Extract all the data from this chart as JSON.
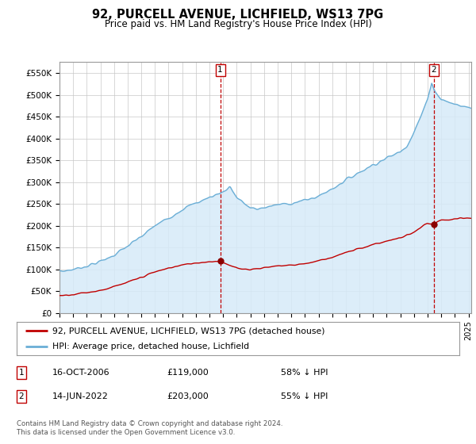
{
  "title": "92, PURCELL AVENUE, LICHFIELD, WS13 7PG",
  "subtitle": "Price paid vs. HM Land Registry's House Price Index (HPI)",
  "ylabel_ticks": [
    "£0",
    "£50K",
    "£100K",
    "£150K",
    "£200K",
    "£250K",
    "£300K",
    "£350K",
    "£400K",
    "£450K",
    "£500K",
    "£550K"
  ],
  "ytick_values": [
    0,
    50000,
    100000,
    150000,
    200000,
    250000,
    300000,
    350000,
    400000,
    450000,
    500000,
    550000
  ],
  "ylim": [
    0,
    575000
  ],
  "xlim_start": 1995.0,
  "xlim_end": 2025.2,
  "hpi_color": "#6aaed6",
  "hpi_fill_color": "#d6eaf8",
  "price_color": "#C00000",
  "marker_color": "#8B0000",
  "dashed_line_color": "#C00000",
  "background_color": "#FFFFFF",
  "grid_color": "#C8C8C8",
  "transaction1_price": 119000,
  "transaction1_year": 2006.79,
  "transaction2_price": 203000,
  "transaction2_year": 2022.45,
  "legend_label_red": "92, PURCELL AVENUE, LICHFIELD, WS13 7PG (detached house)",
  "legend_label_blue": "HPI: Average price, detached house, Lichfield",
  "footnote": "Contains HM Land Registry data © Crown copyright and database right 2024.\nThis data is licensed under the Open Government Licence v3.0.",
  "table_rows": [
    {
      "num": "1",
      "date": "16-OCT-2006",
      "price": "£119,000",
      "hpi_rel": "58% ↓ HPI"
    },
    {
      "num": "2",
      "date": "14-JUN-2022",
      "price": "£203,000",
      "hpi_rel": "55% ↓ HPI"
    }
  ],
  "hpi_anchors_x": [
    1995,
    1996,
    1997,
    1998,
    1999,
    2000,
    2001,
    2002,
    2003,
    2004,
    2005,
    2006,
    2007,
    2007.5,
    2008,
    2009,
    2009.5,
    2010,
    2011,
    2012,
    2013,
    2014,
    2015,
    2016,
    2017,
    2018,
    2019,
    2020,
    2020.5,
    2021,
    2021.5,
    2022,
    2022.3,
    2022.5,
    2023,
    2024,
    2025.2
  ],
  "hpi_anchors_y": [
    95000,
    100000,
    108000,
    118000,
    133000,
    153000,
    175000,
    200000,
    218000,
    238000,
    252000,
    265000,
    278000,
    290000,
    265000,
    240000,
    238000,
    242000,
    248000,
    252000,
    258000,
    268000,
    285000,
    305000,
    323000,
    340000,
    355000,
    370000,
    385000,
    415000,
    450000,
    490000,
    530000,
    510000,
    490000,
    478000,
    470000
  ],
  "price_anchors_x": [
    1995,
    1996,
    1997,
    1998,
    1999,
    2000,
    2001,
    2002,
    2003,
    2004,
    2005,
    2006,
    2006.79,
    2007,
    2007.5,
    2008,
    2009,
    2010,
    2011,
    2012,
    2013,
    2014,
    2015,
    2016,
    2017,
    2018,
    2019,
    2020,
    2021,
    2021.5,
    2022,
    2022.45,
    2022.8,
    2023,
    2024,
    2025.2
  ],
  "price_anchors_y": [
    40000,
    43000,
    47000,
    52000,
    60000,
    70000,
    82000,
    94000,
    103000,
    110000,
    115000,
    118000,
    119000,
    116000,
    108000,
    103000,
    100000,
    104000,
    108000,
    110000,
    113000,
    120000,
    128000,
    138000,
    148000,
    157000,
    165000,
    172000,
    185000,
    196000,
    205000,
    203000,
    210000,
    212000,
    215000,
    218000
  ]
}
